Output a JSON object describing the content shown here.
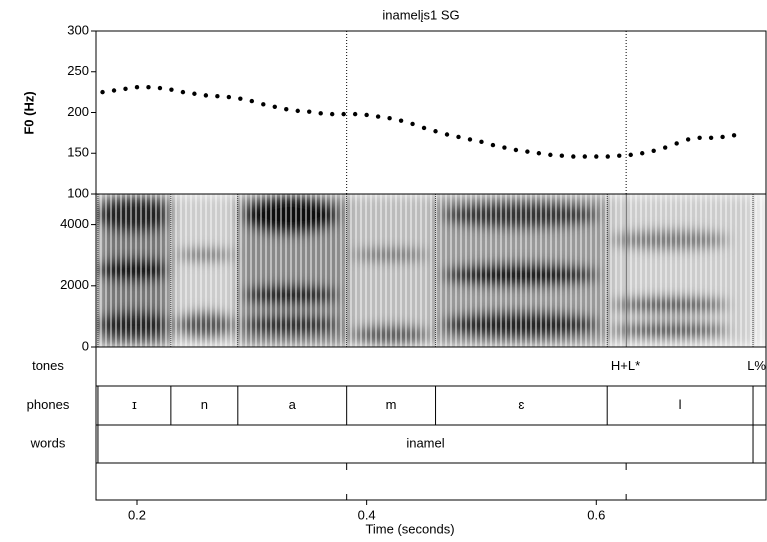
{
  "chart_data": [
    {
      "type": "line",
      "title": "inamelįs1  SG",
      "y_label": "F0 (Hz)",
      "marker": "dots",
      "x": [
        0.17,
        0.18,
        0.19,
        0.2,
        0.21,
        0.22,
        0.23,
        0.24,
        0.25,
        0.26,
        0.27,
        0.28,
        0.29,
        0.3,
        0.31,
        0.32,
        0.33,
        0.34,
        0.35,
        0.36,
        0.37,
        0.38,
        0.39,
        0.4,
        0.41,
        0.42,
        0.43,
        0.44,
        0.45,
        0.46,
        0.47,
        0.48,
        0.49,
        0.5,
        0.51,
        0.52,
        0.53,
        0.54,
        0.55,
        0.56,
        0.57,
        0.58,
        0.59,
        0.6,
        0.61,
        0.62,
        0.63,
        0.64,
        0.65,
        0.66,
        0.67,
        0.68,
        0.69,
        0.7,
        0.71,
        0.72
      ],
      "series": [
        {
          "color": "#000000",
          "values": [
            225,
            227,
            229,
            231,
            231,
            230,
            228,
            225,
            223,
            221,
            220,
            219,
            217,
            214,
            210,
            207,
            204,
            202,
            201,
            199,
            198,
            198,
            198,
            197,
            195,
            193,
            190,
            186,
            181,
            177,
            173,
            170,
            167,
            164,
            160,
            157,
            154,
            152,
            150,
            148,
            147,
            146,
            146,
            146,
            146,
            147,
            148,
            150,
            153,
            157,
            162,
            167,
            169,
            169,
            170,
            172
          ]
        }
      ],
      "xlim": [
        0.1643,
        0.7478
      ],
      "ylim": [
        100,
        300
      ],
      "yticks": [
        100,
        150,
        200,
        250,
        300
      ]
    },
    {
      "type": "spectrogram",
      "ylim": [
        0,
        5000
      ],
      "yticks": [
        0,
        2000,
        4000
      ]
    },
    {
      "type": "tiers",
      "x_label": "Time (seconds)",
      "xticks": [
        0.2,
        0.4,
        0.6
      ],
      "tiers": [
        {
          "name": "tones",
          "times": [
            0.626,
            0.7478
          ],
          "labels": [
            "H+L*",
            "L%"
          ]
        },
        {
          "name": "phones",
          "boundaries": [
            0.166,
            0.2295,
            0.2878,
            0.3826,
            0.46,
            0.6095,
            0.7365
          ],
          "labels": [
            "ɪ",
            "n",
            "a",
            "m",
            "ɛ",
            "l"
          ]
        },
        {
          "name": "words",
          "boundaries": [
            0.166,
            0.7365
          ],
          "labels": [
            "inamel"
          ]
        }
      ]
    }
  ]
}
